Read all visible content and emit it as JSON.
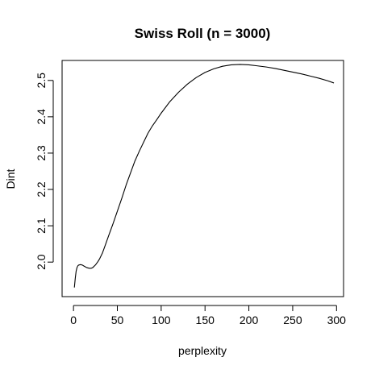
{
  "chart_data": {
    "type": "line",
    "title": "Swiss Roll (n = 3000)",
    "xlabel": "perplexity",
    "ylabel": "Dint",
    "xlim": [
      -13,
      308
    ],
    "ylim": [
      1.905,
      2.555
    ],
    "xticks": [
      0,
      50,
      100,
      150,
      200,
      250,
      300
    ],
    "xtick_labels": [
      "0",
      "50",
      "100",
      "150",
      "200",
      "250",
      "300"
    ],
    "yticks": [
      2.0,
      2.1,
      2.2,
      2.3,
      2.4,
      2.5
    ],
    "ytick_labels": [
      "2.0",
      "2.1",
      "2.2",
      "2.3",
      "2.4",
      "2.5"
    ],
    "grid": false,
    "legend": "none",
    "series": [
      {
        "x": [
          1,
          2,
          3,
          4,
          5,
          6,
          8,
          10,
          12,
          15,
          18,
          20,
          22,
          25,
          28,
          30,
          33,
          36,
          40,
          45,
          50,
          55,
          60,
          65,
          70,
          75,
          80,
          85,
          90,
          95,
          100,
          110,
          120,
          130,
          140,
          150,
          160,
          170,
          180,
          190,
          200,
          210,
          220,
          230,
          240,
          250,
          260,
          270,
          280,
          290,
          297
        ],
        "y": [
          1.93,
          1.955,
          1.975,
          1.985,
          1.99,
          1.992,
          1.993,
          1.992,
          1.989,
          1.985,
          1.983,
          1.983,
          1.985,
          1.992,
          2.002,
          2.01,
          2.025,
          2.045,
          2.072,
          2.105,
          2.14,
          2.175,
          2.212,
          2.245,
          2.278,
          2.305,
          2.33,
          2.355,
          2.375,
          2.392,
          2.41,
          2.442,
          2.468,
          2.49,
          2.508,
          2.522,
          2.532,
          2.539,
          2.543,
          2.544,
          2.543,
          2.54,
          2.537,
          2.533,
          2.528,
          2.523,
          2.518,
          2.512,
          2.506,
          2.499,
          2.493
        ],
        "color": "#000000"
      }
    ]
  }
}
